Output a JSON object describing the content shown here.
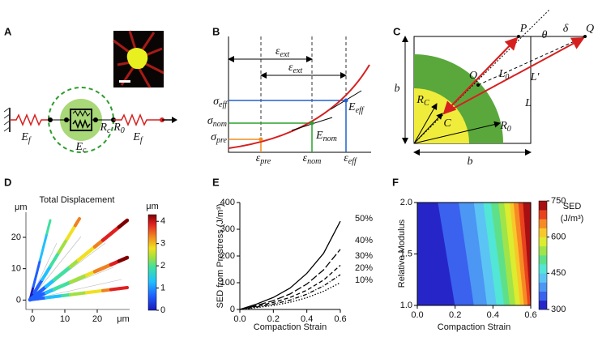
{
  "panel_labels": [
    "A",
    "B",
    "C",
    "D",
    "E",
    "F"
  ],
  "panel_a": {
    "labels": [
      {
        "base": "E",
        "sub": "f"
      },
      {
        "base": "E",
        "sub": "c"
      },
      {
        "base": "R",
        "sub": "c"
      },
      {
        "base": "R",
        "sub": "0"
      },
      {
        "base": "E",
        "sub": "f"
      }
    ]
  },
  "panel_b": {
    "ext_labels": [
      {
        "base": "ε",
        "sub": "ext"
      },
      {
        "base": "ε",
        "sub": "ext"
      }
    ],
    "stress_labels": [
      {
        "base": "σ",
        "sub": "eff"
      },
      {
        "base": "σ",
        "sub": "nom"
      },
      {
        "base": "σ",
        "sub": "pre"
      }
    ],
    "strain_labels": [
      {
        "base": "ε",
        "sub": "pre"
      },
      {
        "base": "ε",
        "sub": "nom"
      },
      {
        "base": "ε",
        "sub": "eff"
      }
    ],
    "modulus_labels": [
      {
        "base": "E",
        "sub": "eff"
      },
      {
        "base": "E",
        "sub": "nom"
      }
    ]
  },
  "panel_c": {
    "labels": [
      "P",
      "θ",
      "δ",
      "Q",
      {
        "base": "L",
        "sub": "0"
      },
      "L′",
      "O",
      "L",
      {
        "base": "R",
        "sub": "C"
      },
      "C",
      {
        "base": "R",
        "sub": "0"
      },
      "b",
      "b"
    ]
  },
  "chart_data": [
    {
      "type": "field",
      "title": "Total Displacement",
      "x_unit": "μm",
      "y_unit": "μm",
      "xlim": [
        -2,
        30
      ],
      "ylim": [
        -3,
        28
      ],
      "xticks": [
        0,
        10,
        20
      ],
      "yticks": [
        0,
        10,
        20
      ],
      "colorbar": {
        "label": "μm",
        "lim": [
          0,
          4.3
        ],
        "ticks": [
          0,
          1,
          2,
          3,
          4
        ]
      }
    },
    {
      "type": "line",
      "xlabel": "Compaction Strain",
      "ylabel": "SED from Prestress (J/m³)",
      "x": [
        0,
        0.1,
        0.2,
        0.3,
        0.4,
        0.5,
        0.6
      ],
      "xlim": [
        0,
        0.6
      ],
      "ylim": [
        0,
        400
      ],
      "xticks": [
        {
          "value": 0,
          "label": "0.0"
        },
        0.2,
        0.4,
        0.6
      ],
      "yticks": [
        0,
        100,
        200,
        300,
        400
      ],
      "series": [
        {
          "name": "50%",
          "color": "#000000",
          "dash": "solid",
          "values": [
            0,
            20,
            45,
            80,
            135,
            210,
            330
          ]
        },
        {
          "name": "40%",
          "color": "#000000",
          "dash": "long",
          "values": [
            0,
            15,
            33,
            58,
            95,
            148,
            225
          ]
        },
        {
          "name": "30%",
          "color": "#000000",
          "dash": "dashed",
          "values": [
            0,
            12,
            26,
            45,
            72,
            110,
            165
          ]
        },
        {
          "name": "20%",
          "color": "#000000",
          "dash": "dashdot",
          "values": [
            0,
            9,
            20,
            35,
            57,
            88,
            130
          ]
        },
        {
          "name": "10%",
          "color": "#000000",
          "dash": "dotted",
          "values": [
            0,
            7,
            15,
            27,
            44,
            68,
            100
          ]
        }
      ]
    },
    {
      "type": "contour",
      "xlabel": "Compaction Strain",
      "ylabel": "Relative Modulus",
      "xlim": [
        0,
        0.6
      ],
      "ylim": [
        1,
        2
      ],
      "xticks": [
        {
          "value": 0,
          "label": "0.0"
        },
        0.2,
        0.4,
        0.6
      ],
      "yticks": [
        {
          "value": 1,
          "label": "1.0"
        },
        1.5,
        {
          "value": 2,
          "label": "2.0"
        }
      ],
      "y": [
        1,
        2
      ],
      "contours": [
        {
          "level": 337.5,
          "x": [
            0.2,
            0.11
          ]
        },
        {
          "level": 375,
          "x": [
            0.3,
            0.22
          ]
        },
        {
          "level": 412.5,
          "x": [
            0.37,
            0.3
          ]
        },
        {
          "level": 450,
          "x": [
            0.42,
            0.35
          ]
        },
        {
          "level": 487.5,
          "x": [
            0.46,
            0.39
          ]
        },
        {
          "level": 525,
          "x": [
            0.49,
            0.43
          ]
        },
        {
          "level": 562.5,
          "x": [
            0.52,
            0.46
          ]
        },
        {
          "level": 600,
          "x": [
            0.545,
            0.49
          ]
        },
        {
          "level": 637.5,
          "x": [
            0.565,
            0.51
          ]
        },
        {
          "level": 675,
          "x": [
            0.585,
            0.535
          ]
        },
        {
          "level": 712.5,
          "x": [
            0.6,
            0.56
          ]
        }
      ],
      "band_colors": [
        "#2626c8",
        "#3a62ee",
        "#4c96f4",
        "#5cc4f4",
        "#52e6d6",
        "#5ee08a",
        "#9ee44a",
        "#dcec2e",
        "#f8c82a",
        "#f68a24",
        "#e8421e",
        "#a80f12"
      ],
      "colorbar": {
        "label": [
          "SED",
          "(J/m³)"
        ],
        "lim": [
          300,
          750
        ],
        "ticks": [
          300,
          450,
          600,
          750
        ]
      }
    }
  ]
}
